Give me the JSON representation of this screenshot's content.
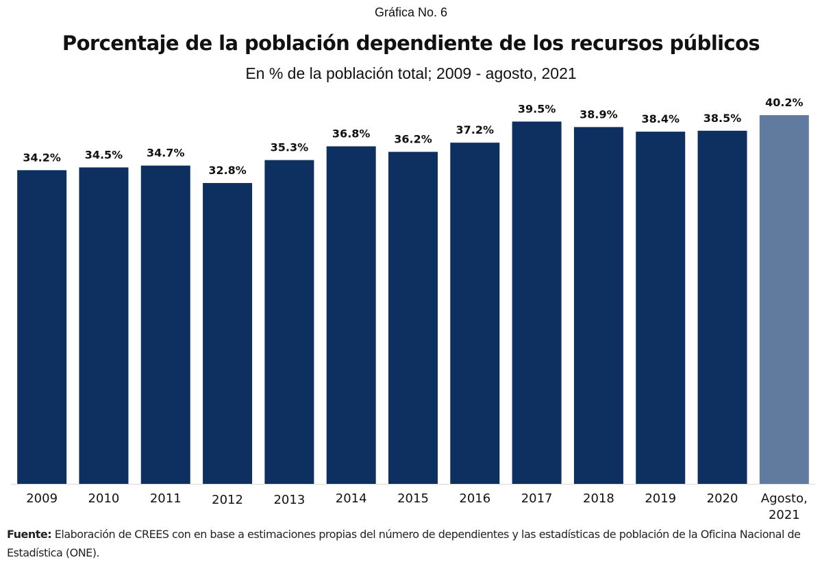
{
  "header": {
    "chart_number": "Gráfica No. 6"
  },
  "colors": {
    "primary_bar": "#0e3060",
    "highlight_bar": "#617b9f",
    "axis_line": "#d9d9d9"
  },
  "source": {
    "label": "Fuente:",
    "text": " Elaboración de CREES con en base a estimaciones propias del número de dependientes y las estadísticas de población de la Oficina Nacional de Estadística (ONE)."
  },
  "chart_data": {
    "type": "bar",
    "title": "Porcentaje de la población dependiente de los recursos públicos",
    "subtitle": "En % de la población total; 2009 - agosto, 2021",
    "xlabel": "",
    "ylabel": "",
    "ylim": [
      0,
      41
    ],
    "grid": false,
    "legend": "none",
    "categories": [
      "2009",
      "2010",
      "2011",
      "2012",
      "2013",
      "2014",
      "2015",
      "2016",
      "2017",
      "2018",
      "2019",
      "2020",
      "Agosto, 2021"
    ],
    "category_lines": [
      [
        "2009"
      ],
      [
        "2010"
      ],
      [
        "2011"
      ],
      [
        "2012"
      ],
      [
        "2013"
      ],
      [
        "2014"
      ],
      [
        "2015"
      ],
      [
        "2016"
      ],
      [
        "2017"
      ],
      [
        "2018"
      ],
      [
        "2019"
      ],
      [
        "2020"
      ],
      [
        "Agosto,",
        "2021"
      ]
    ],
    "values": [
      34.2,
      34.5,
      34.7,
      32.8,
      35.3,
      36.8,
      36.2,
      37.2,
      39.5,
      38.9,
      38.4,
      38.5,
      40.2
    ],
    "data_labels": [
      "34.2%",
      "34.5%",
      "34.7%",
      "32.8%",
      "35.3%",
      "36.8%",
      "36.2%",
      "37.2%",
      "39.5%",
      "38.9%",
      "38.4%",
      "38.5%",
      "40.2%"
    ],
    "highlight_index": 12
  }
}
